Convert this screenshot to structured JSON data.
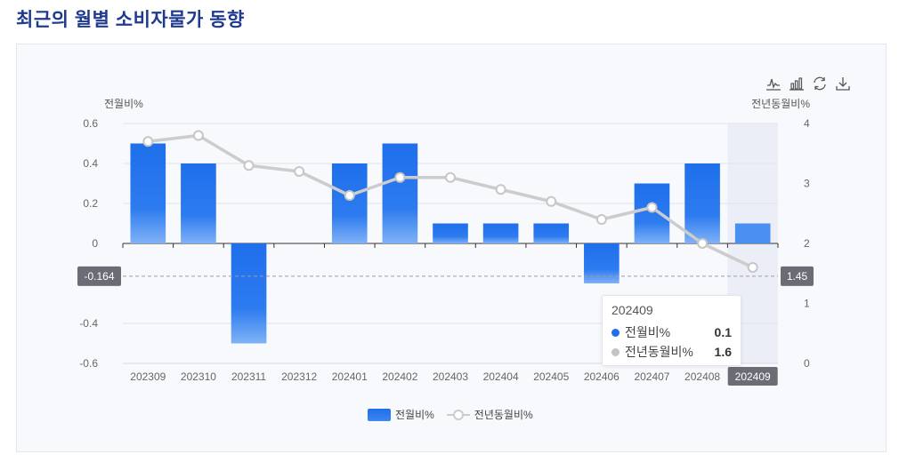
{
  "page": {
    "title": "최근의 월별 소비자물가 동향"
  },
  "toolbar": {
    "icons": [
      "line-chart-icon",
      "bar-chart-icon",
      "refresh-icon",
      "download-icon"
    ]
  },
  "colors": {
    "bar": "#1f6fec",
    "bar_light": "#7fb2f7",
    "line": "#cccccc",
    "title": "#1f3b8f"
  },
  "chart_data": {
    "type": "bar",
    "categories": [
      "202309",
      "202310",
      "202311",
      "202312",
      "202401",
      "202402",
      "202403",
      "202404",
      "202405",
      "202406",
      "202407",
      "202408",
      "202409"
    ],
    "series": [
      {
        "name": "전월비%",
        "type": "bar",
        "axis": "left",
        "values": [
          0.5,
          0.4,
          -0.5,
          0,
          0.4,
          0.5,
          0.1,
          0.1,
          0.1,
          -0.2,
          0.3,
          0.4,
          0.1
        ]
      },
      {
        "name": "전년동월비%",
        "type": "line",
        "axis": "right",
        "values": [
          3.7,
          3.8,
          3.3,
          3.2,
          2.8,
          3.1,
          3.1,
          2.9,
          2.7,
          2.4,
          2.6,
          2.0,
          1.6
        ]
      }
    ],
    "ylabel": "전월비%",
    "ylabel_right": "전년동월비%",
    "ylim": [
      -0.6,
      0.6
    ],
    "ylim_right": [
      0,
      4
    ],
    "yticks": [
      "0.6",
      "0.4",
      "0.2",
      "0",
      "-0.4",
      "-0.6"
    ],
    "yticks_right": [
      "4",
      "3",
      "2",
      "1",
      "0"
    ],
    "highlight_category": "202409",
    "axis_pointer": {
      "left_value": "-0.164",
      "right_value": "1.45"
    },
    "tooltip": {
      "title": "202409",
      "rows": [
        {
          "name": "전월비%",
          "value": "0.1"
        },
        {
          "name": "전년동월비%",
          "value": "1.6"
        }
      ]
    },
    "legend": [
      "전월비%",
      "전년동월비%"
    ],
    "legend_position": "bottom-center",
    "grid": true
  }
}
